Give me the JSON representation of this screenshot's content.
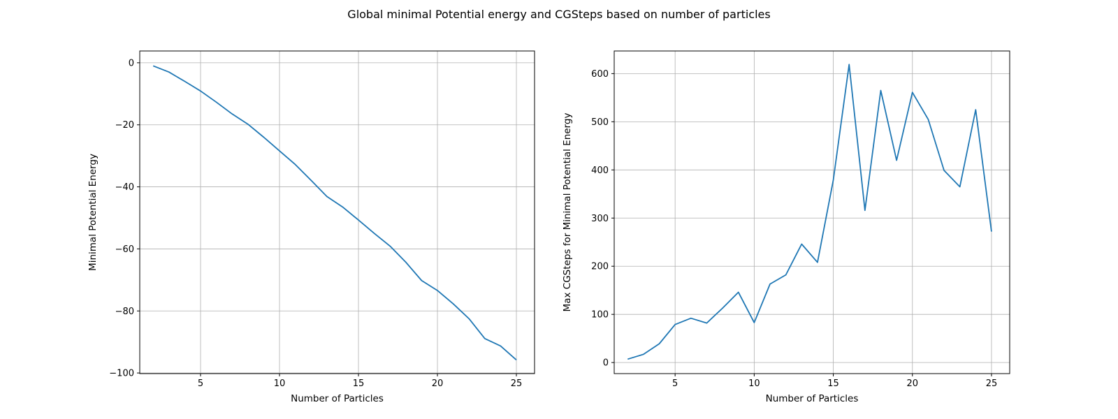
{
  "figure": {
    "title": "Global minimal Potential energy and CGSteps based on number of particles"
  },
  "colors": {
    "line": "#1f77b4",
    "grid": "#b0b0b0",
    "axes": "#000000"
  },
  "chart_data": [
    {
      "type": "line",
      "xlabel": "Number of Particles",
      "ylabel": "Minimal Potential Energy",
      "xlim": [
        1.15,
        26.15
      ],
      "ylim": [
        -100.2,
        3.8
      ],
      "xticks": [
        5,
        10,
        15,
        20,
        25
      ],
      "yticks": [
        0,
        -20,
        -40,
        -60,
        -80,
        -100
      ],
      "grid": true,
      "series": [
        {
          "x": [
            2,
            3,
            4,
            5,
            6,
            7,
            8,
            9,
            10,
            11,
            12,
            13,
            14,
            15,
            16,
            17,
            18,
            19,
            20,
            21,
            22,
            23,
            24,
            25
          ],
          "values": [
            -1.0,
            -3.0,
            -6.0,
            -9.1,
            -12.7,
            -16.5,
            -19.8,
            -24.0,
            -28.4,
            -32.8,
            -37.9,
            -43.1,
            -46.5,
            -50.7,
            -55.0,
            -59.1,
            -64.3,
            -70.2,
            -73.4,
            -77.7,
            -82.5,
            -88.9,
            -91.3,
            -95.8
          ]
        }
      ]
    },
    {
      "type": "line",
      "xlabel": "Number of Particles",
      "ylabel": "Max CGSteps for Minimal Potential Energy",
      "xlim": [
        1.15,
        26.15
      ],
      "ylim": [
        -23,
        647
      ],
      "xticks": [
        5,
        10,
        15,
        20,
        25
      ],
      "yticks": [
        0,
        100,
        200,
        300,
        400,
        500,
        600
      ],
      "grid": true,
      "series": [
        {
          "x": [
            2,
            3,
            4,
            5,
            6,
            7,
            8,
            9,
            10,
            11,
            12,
            13,
            14,
            15,
            16,
            17,
            18,
            19,
            20,
            21,
            22,
            23,
            24,
            25
          ],
          "values": [
            7,
            17,
            39,
            79,
            92,
            82,
            113,
            146,
            83,
            163,
            182,
            246,
            208,
            379,
            619,
            316,
            565,
            420,
            561,
            505,
            399,
            365,
            525,
            272
          ]
        }
      ]
    }
  ]
}
